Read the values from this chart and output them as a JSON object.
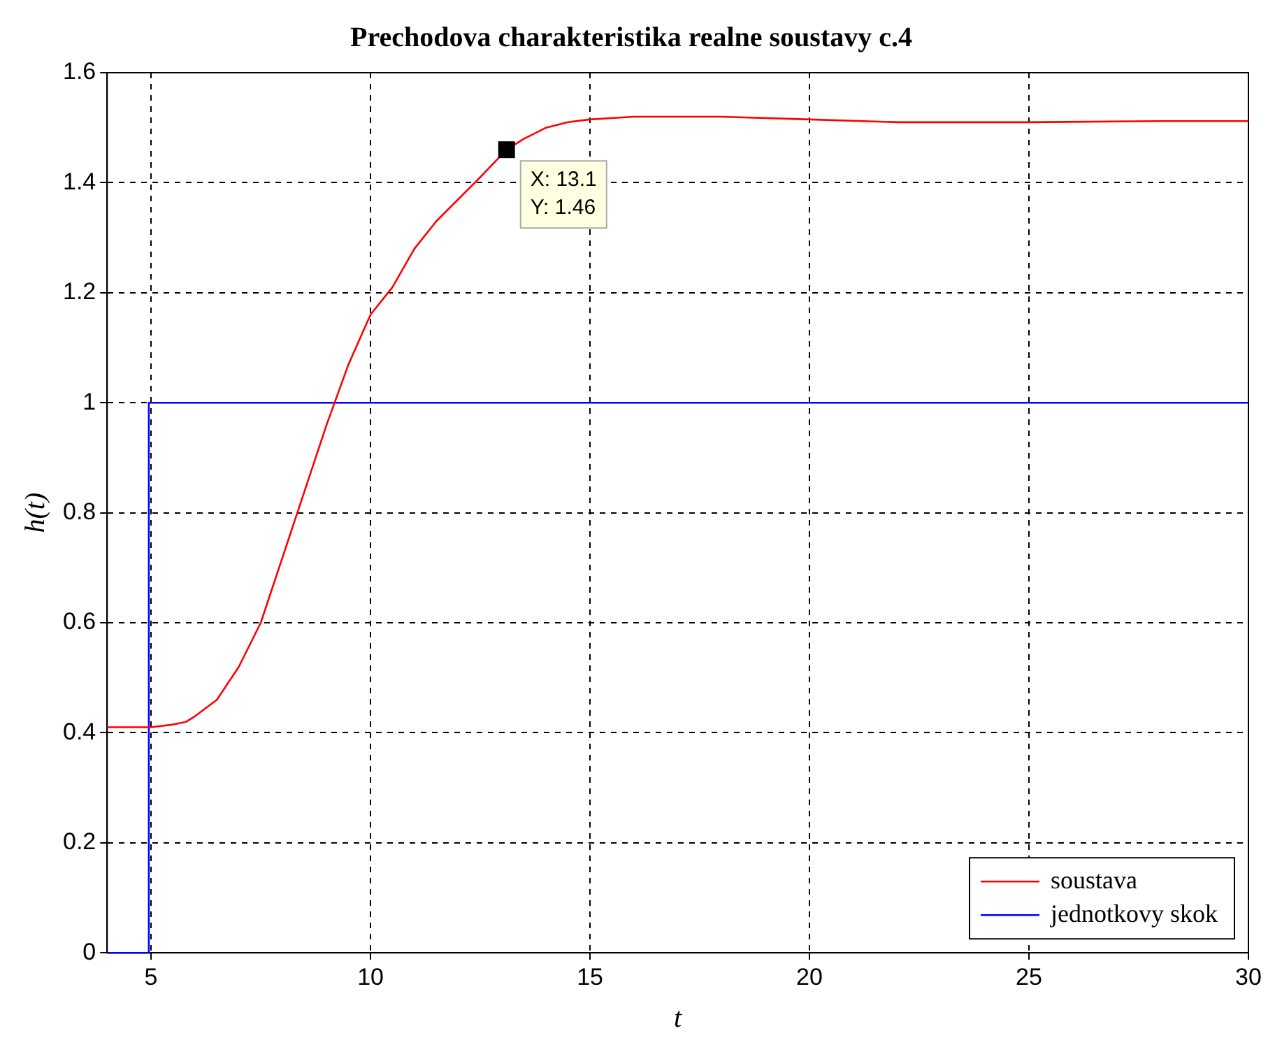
{
  "chart_data": {
    "type": "line",
    "title": "Prechodova charakteristika realne soustavy c.4",
    "xlabel": "t",
    "ylabel": "h(t)",
    "xlim": [
      4,
      30
    ],
    "xticks": [
      5,
      10,
      15,
      20,
      25,
      30
    ],
    "ylim": [
      0,
      1.6
    ],
    "yticks": [
      0,
      0.2,
      0.4,
      0.6,
      0.8,
      1,
      1.2,
      1.4,
      1.6
    ],
    "grid": true,
    "line_style": "solid",
    "marker": "none",
    "legend": "bottom right",
    "annotations": [
      {
        "text": "X: 13.1\nY: 1.46",
        "x": 13.1,
        "y": 1.46
      }
    ],
    "series": [
      {
        "name": "soustava",
        "color": "#ff0000",
        "x": [
          4,
          5,
          5.5,
          5.8,
          6,
          6.5,
          7,
          7.5,
          8,
          8.5,
          9,
          9.5,
          10,
          10.5,
          11,
          11.5,
          12,
          12.5,
          13.1,
          13.5,
          14,
          14.5,
          15,
          16,
          18,
          20,
          22,
          25,
          28,
          30
        ],
        "values": [
          0.41,
          0.41,
          0.415,
          0.42,
          0.43,
          0.46,
          0.52,
          0.6,
          0.72,
          0.84,
          0.96,
          1.07,
          1.16,
          1.21,
          1.28,
          1.33,
          1.37,
          1.41,
          1.46,
          1.48,
          1.5,
          1.51,
          1.515,
          1.52,
          1.52,
          1.515,
          1.51,
          1.51,
          1.512,
          1.512
        ]
      },
      {
        "name": "jednotkovy skok",
        "color": "#0000ff",
        "x": [
          4,
          4.95,
          4.95,
          30
        ],
        "values": [
          0,
          0,
          1,
          1
        ]
      }
    ]
  }
}
